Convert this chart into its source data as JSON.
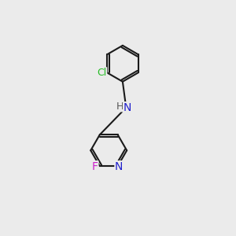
{
  "background_color": "#ebebeb",
  "bond_color": "#1a1a1a",
  "bond_width": 1.5,
  "atom_colors": {
    "N_amine": "#2020cc",
    "N_pyridine": "#2020cc",
    "Cl": "#22bb22",
    "F": "#cc22cc",
    "H": "#555555",
    "C": "#1a1a1a"
  }
}
